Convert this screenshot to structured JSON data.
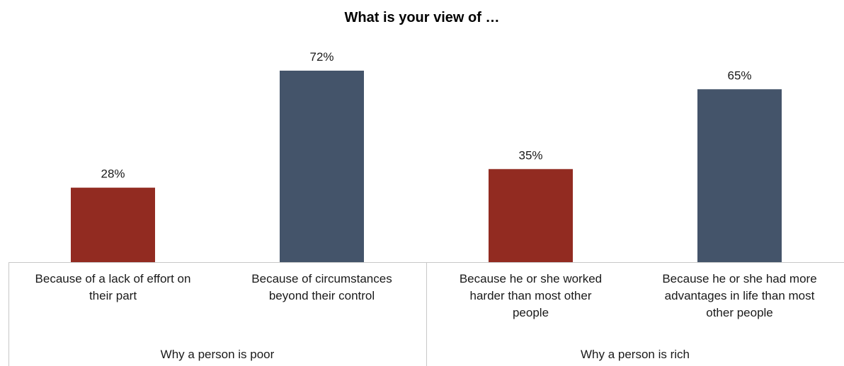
{
  "chart_data": {
    "type": "bar",
    "title": "What is your view of …",
    "xlabel": "",
    "ylabel": "",
    "ylim": [
      0,
      80
    ],
    "grid": false,
    "legend": "none",
    "value_suffix": "%",
    "colors": {
      "red": "#922B21",
      "slate": "#44546A",
      "axis": "#C8C8C8"
    },
    "groups": [
      {
        "label": "Why a person is poor",
        "categories": [
          {
            "label_lines": [
              "Because of a lack of effort on",
              "their part"
            ],
            "value": 28,
            "color": "#922B21"
          },
          {
            "label_lines": [
              "Because of circumstances",
              "beyond their control"
            ],
            "value": 72,
            "color": "#44546A"
          }
        ]
      },
      {
        "label": "Why a person is rich",
        "categories": [
          {
            "label_lines": [
              "Because he or she worked",
              "harder than most other",
              "people"
            ],
            "value": 35,
            "color": "#922B21"
          },
          {
            "label_lines": [
              "Because he or she had more",
              "advantages in life than most",
              "other people"
            ],
            "value": 65,
            "color": "#44546A"
          }
        ]
      }
    ]
  }
}
